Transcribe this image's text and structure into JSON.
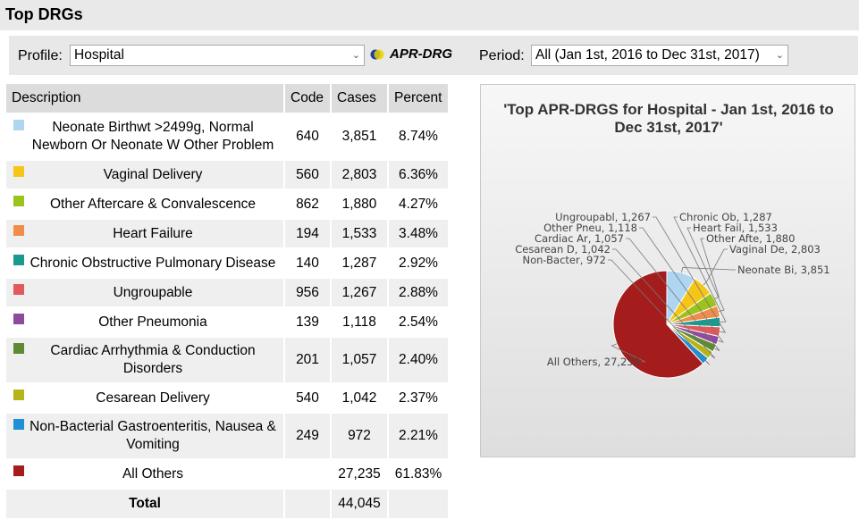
{
  "header": {
    "title": "Top DRGs"
  },
  "toolbar": {
    "profile_label": "Profile:",
    "profile_value": "Hospital",
    "drg_type": "APR-DRG",
    "period_label": "Period:",
    "period_value": "All (Jan 1st, 2016 to Dec 31st, 2017)"
  },
  "table": {
    "headers": [
      "Description",
      "Code",
      "Cases",
      "Percent"
    ],
    "rows": [
      {
        "desc": "Neonate Birthwt >2499g, Normal Newborn Or Neonate W Other Problem",
        "code": "640",
        "cases": "3,851",
        "percent": "8.74%",
        "color": "#aed6f1"
      },
      {
        "desc": "Vaginal Delivery",
        "code": "560",
        "cases": "2,803",
        "percent": "6.36%",
        "color": "#f5c518"
      },
      {
        "desc": "Other Aftercare & Convalescence",
        "code": "862",
        "cases": "1,880",
        "percent": "4.27%",
        "color": "#9bc31c"
      },
      {
        "desc": "Heart Failure",
        "code": "194",
        "cases": "1,533",
        "percent": "3.48%",
        "color": "#f28c4a"
      },
      {
        "desc": "Chronic Obstructive Pulmonary Disease",
        "code": "140",
        "cases": "1,287",
        "percent": "2.92%",
        "color": "#1a9a8f"
      },
      {
        "desc": "Ungroupable",
        "code": "956",
        "cases": "1,267",
        "percent": "2.88%",
        "color": "#e05a5a"
      },
      {
        "desc": "Other Pneumonia",
        "code": "139",
        "cases": "1,118",
        "percent": "2.54%",
        "color": "#8e4b9e"
      },
      {
        "desc": "Cardiac Arrhythmia & Conduction Disorders",
        "code": "201",
        "cases": "1,057",
        "percent": "2.40%",
        "color": "#5f8a35"
      },
      {
        "desc": "Cesarean Delivery",
        "code": "540",
        "cases": "1,042",
        "percent": "2.37%",
        "color": "#b5b51a"
      },
      {
        "desc": "Non-Bacterial Gastroenteritis, Nausea & Vomiting",
        "code": "249",
        "cases": "972",
        "percent": "2.21%",
        "color": "#1e90d6"
      },
      {
        "desc": "All Others",
        "code": "",
        "cases": "27,235",
        "percent": "61.83%",
        "color": "#a51c1c"
      }
    ],
    "total": {
      "label": "Total",
      "code": "",
      "cases": "44,045",
      "percent": ""
    }
  },
  "chart_data": {
    "type": "pie",
    "title": "'Top APR-DRGS for Hospital - Jan 1st, 2016 to Dec 31st, 2017'",
    "slices": [
      {
        "label": "Neonate Bi, 3,851",
        "value": 3851,
        "color": "#aed6f1"
      },
      {
        "label": "Vaginal De, 2,803",
        "value": 2803,
        "color": "#f5c518"
      },
      {
        "label": "Other Afte, 1,880",
        "value": 1880,
        "color": "#9bc31c"
      },
      {
        "label": "Heart Fail, 1,533",
        "value": 1533,
        "color": "#f28c4a"
      },
      {
        "label": "Chronic Ob, 1,287",
        "value": 1287,
        "color": "#1a9a8f"
      },
      {
        "label": "Ungroupabl, 1,267",
        "value": 1267,
        "color": "#e05a5a"
      },
      {
        "label": "Other Pneu, 1,118",
        "value": 1118,
        "color": "#8e4b9e"
      },
      {
        "label": "Cardiac Ar, 1,057",
        "value": 1057,
        "color": "#5f8a35"
      },
      {
        "label": "Cesarean D, 1,042",
        "value": 1042,
        "color": "#b5b51a"
      },
      {
        "label": "Non-Bacter, 972",
        "value": 972,
        "color": "#1e90d6"
      },
      {
        "label": "All Others, 27,235",
        "value": 27235,
        "color": "#a51c1c"
      }
    ]
  }
}
